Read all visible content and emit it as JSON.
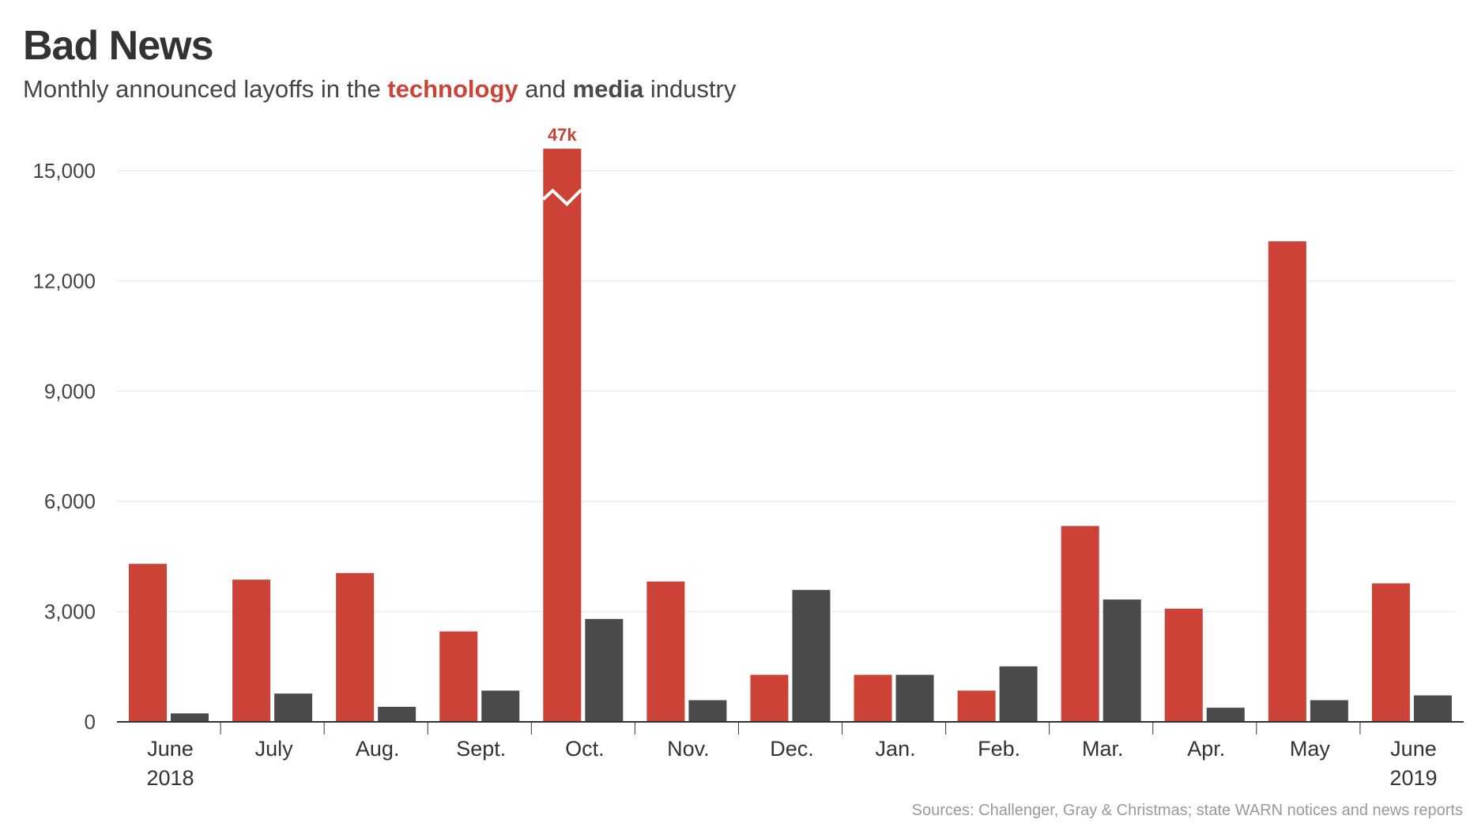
{
  "title": "Bad News",
  "subtitle": {
    "prefix": "Monthly announced layoffs in the ",
    "series1": "technology",
    "middle": " and ",
    "series2": "media",
    "suffix": " industry"
  },
  "source": "Sources: Challenger, Gray & Christmas; state WARN notices and news reports",
  "chart_data": {
    "type": "bar",
    "title": "Bad News",
    "subtitle": "Monthly announced layoffs in the technology and media industry",
    "categories": [
      "June\n2018",
      "July",
      "Aug.",
      "Sept.",
      "Oct.",
      "Nov.",
      "Dec.",
      "Jan.",
      "Feb.",
      "Mar.",
      "Apr.",
      "May",
      "June\n2019"
    ],
    "series": [
      {
        "name": "technology",
        "color": "#cd4236",
        "values": [
          4300,
          3870,
          4050,
          2460,
          47000,
          3820,
          1280,
          1280,
          850,
          5330,
          3080,
          13080,
          3770
        ]
      },
      {
        "name": "media",
        "color": "#4a4a4a",
        "values": [
          230,
          770,
          410,
          850,
          2800,
          590,
          3590,
          1280,
          1510,
          3330,
          385,
          590,
          720
        ]
      }
    ],
    "ylim": [
      0,
      15600
    ],
    "yticks": [
      0,
      3000,
      6000,
      9000,
      12000,
      15000
    ],
    "ytick_labels": [
      "0",
      "3,000",
      "6,000",
      "9,000",
      "12,000",
      "15,000"
    ],
    "axis_break": {
      "category": "Oct.",
      "series": "technology",
      "label": "47k"
    },
    "grid": true,
    "legend": "in subtitle"
  }
}
